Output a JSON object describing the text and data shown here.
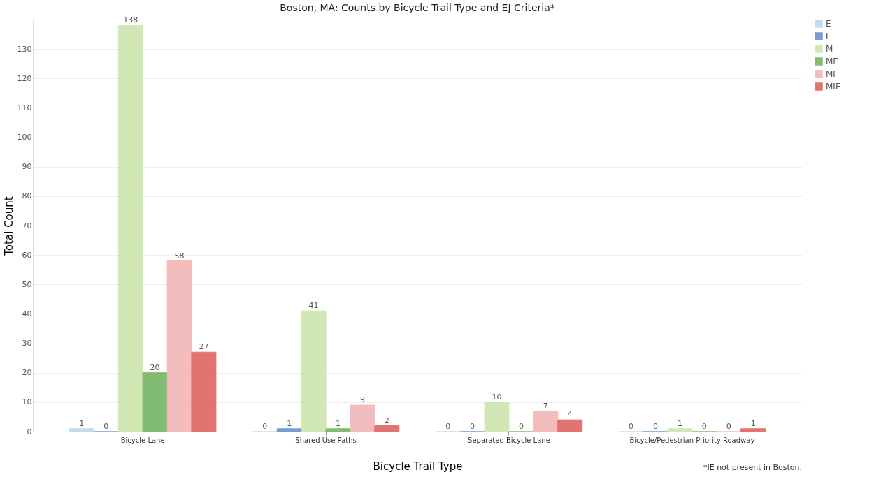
{
  "chart_data": {
    "type": "bar",
    "title": "Boston, MA: Counts by Bicycle Trail Type and EJ Criteria*",
    "xlabel": "Bicycle Trail Type",
    "ylabel": "Total Count",
    "categories": [
      "Bicycle Lane",
      "Shared Use Paths",
      "Separated Bicycle Lane",
      "Bicycle/Pedestrian Priority Roadway"
    ],
    "series": [
      {
        "name": "E",
        "color": "#b9d5e9",
        "values": [
          1,
          0,
          0,
          0
        ]
      },
      {
        "name": "I",
        "color": "#5b8fc7",
        "values": [
          0,
          1,
          0,
          0
        ]
      },
      {
        "name": "M",
        "color": "#c9e5a8",
        "values": [
          138,
          41,
          10,
          1
        ]
      },
      {
        "name": "ME",
        "color": "#6db05a",
        "values": [
          20,
          1,
          0,
          0
        ]
      },
      {
        "name": "MI",
        "color": "#f2b2b2",
        "values": [
          58,
          9,
          7,
          0
        ]
      },
      {
        "name": "MIE",
        "color": "#dc5c58",
        "values": [
          27,
          2,
          4,
          1
        ]
      }
    ],
    "ylim": [
      0,
      140
    ],
    "yticks": [
      0,
      10,
      20,
      30,
      40,
      50,
      60,
      70,
      80,
      90,
      100,
      110,
      120,
      130
    ],
    "grid": "y",
    "legend": "right",
    "data_labels": true,
    "annotations": [
      "*IE not present in Boston."
    ]
  }
}
